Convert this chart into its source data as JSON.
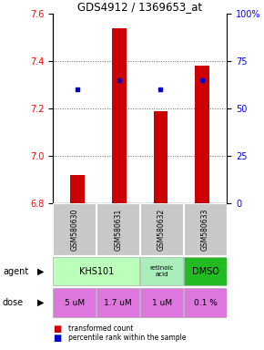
{
  "title": "GDS4912 / 1369653_at",
  "samples": [
    "GSM580630",
    "GSM580631",
    "GSM580632",
    "GSM580633"
  ],
  "bar_values": [
    6.92,
    7.54,
    7.19,
    7.38
  ],
  "percentile_values": [
    7.28,
    7.32,
    7.28,
    7.32
  ],
  "ylim_left": [
    6.8,
    7.6
  ],
  "ylim_right": [
    0,
    100
  ],
  "yticks_left": [
    6.8,
    7.0,
    7.2,
    7.4,
    7.6
  ],
  "yticks_right": [
    0,
    25,
    50,
    75,
    100
  ],
  "ytick_labels_right": [
    "0",
    "25",
    "50",
    "75",
    "100%"
  ],
  "bar_color": "#cc0000",
  "percentile_color": "#0000cc",
  "dose_row": [
    "5 uM",
    "1.7 uM",
    "1 uM",
    "0.1 %"
  ],
  "dose_color": "#dd77dd",
  "sample_bg_color": "#c8c8c8",
  "agent_label": "agent",
  "dose_label": "dose",
  "khs101_color": "#bbffbb",
  "retinoic_color": "#aaeebb",
  "dmso_color": "#22bb22",
  "grid_dotted": [
    7.0,
    7.2,
    7.4
  ]
}
